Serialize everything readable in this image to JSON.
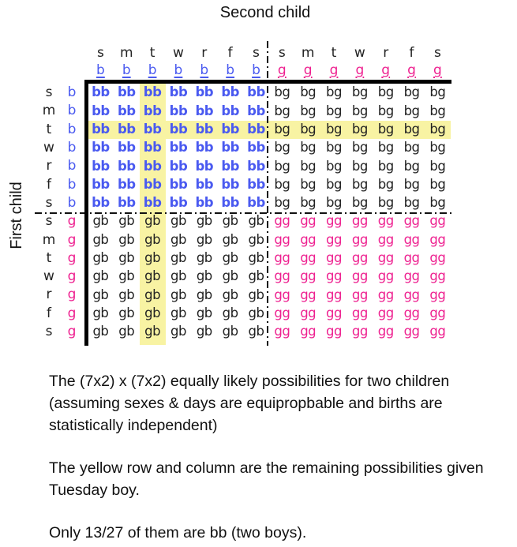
{
  "title": "Second child",
  "side_label": "First child",
  "colors": {
    "boy": "#4a5af0",
    "girl": "#ee2190",
    "highlight": "#f8f3a3",
    "line": "#000000"
  },
  "grid": {
    "col_days": [
      "s",
      "m",
      "t",
      "w",
      "r",
      "f",
      "s",
      "s",
      "m",
      "t",
      "w",
      "r",
      "f",
      "s"
    ],
    "col_sexes": [
      "b",
      "b",
      "b",
      "b",
      "b",
      "b",
      "b",
      "g",
      "g",
      "g",
      "g",
      "g",
      "g",
      "g"
    ],
    "row_days": [
      "s",
      "m",
      "t",
      "w",
      "r",
      "f",
      "s",
      "s",
      "m",
      "t",
      "w",
      "r",
      "f",
      "s"
    ],
    "row_sexes": [
      "b",
      "b",
      "b",
      "b",
      "b",
      "b",
      "b",
      "g",
      "g",
      "g",
      "g",
      "g",
      "g",
      "g"
    ],
    "cells": [
      [
        "bb",
        "bb",
        "bb",
        "bb",
        "bb",
        "bb",
        "bb",
        "bg",
        "bg",
        "bg",
        "bg",
        "bg",
        "bg",
        "bg"
      ],
      [
        "bb",
        "bb",
        "bb",
        "bb",
        "bb",
        "bb",
        "bb",
        "bg",
        "bg",
        "bg",
        "bg",
        "bg",
        "bg",
        "bg"
      ],
      [
        "bb",
        "bb",
        "bb",
        "bb",
        "bb",
        "bb",
        "bb",
        "bg",
        "bg",
        "bg",
        "bg",
        "bg",
        "bg",
        "bg"
      ],
      [
        "bb",
        "bb",
        "bb",
        "bb",
        "bb",
        "bb",
        "bb",
        "bg",
        "bg",
        "bg",
        "bg",
        "bg",
        "bg",
        "bg"
      ],
      [
        "bb",
        "bb",
        "bb",
        "bb",
        "bb",
        "bb",
        "bb",
        "bg",
        "bg",
        "bg",
        "bg",
        "bg",
        "bg",
        "bg"
      ],
      [
        "bb",
        "bb",
        "bb",
        "bb",
        "bb",
        "bb",
        "bb",
        "bg",
        "bg",
        "bg",
        "bg",
        "bg",
        "bg",
        "bg"
      ],
      [
        "bb",
        "bb",
        "bb",
        "bb",
        "bb",
        "bb",
        "bb",
        "bg",
        "bg",
        "bg",
        "bg",
        "bg",
        "bg",
        "bg"
      ],
      [
        "gb",
        "gb",
        "gb",
        "gb",
        "gb",
        "gb",
        "gb",
        "gg",
        "gg",
        "gg",
        "gg",
        "gg",
        "gg",
        "gg"
      ],
      [
        "gb",
        "gb",
        "gb",
        "gb",
        "gb",
        "gb",
        "gb",
        "gg",
        "gg",
        "gg",
        "gg",
        "gg",
        "gg",
        "gg"
      ],
      [
        "gb",
        "gb",
        "gb",
        "gb",
        "gb",
        "gb",
        "gb",
        "gg",
        "gg",
        "gg",
        "gg",
        "gg",
        "gg",
        "gg"
      ],
      [
        "gb",
        "gb",
        "gb",
        "gb",
        "gb",
        "gb",
        "gb",
        "gg",
        "gg",
        "gg",
        "gg",
        "gg",
        "gg",
        "gg"
      ],
      [
        "gb",
        "gb",
        "gb",
        "gb",
        "gb",
        "gb",
        "gb",
        "gg",
        "gg",
        "gg",
        "gg",
        "gg",
        "gg",
        "gg"
      ],
      [
        "gb",
        "gb",
        "gb",
        "gb",
        "gb",
        "gb",
        "gb",
        "gg",
        "gg",
        "gg",
        "gg",
        "gg",
        "gg",
        "gg"
      ],
      [
        "gb",
        "gb",
        "gb",
        "gb",
        "gb",
        "gb",
        "gb",
        "gg",
        "gg",
        "gg",
        "gg",
        "gg",
        "gg",
        "gg"
      ]
    ],
    "highlight": {
      "row_index": 2,
      "col_index": 2,
      "highlighted_header": "t / b"
    }
  },
  "captions": {
    "para1": "The (7x2) x (7x2) equally likely possibilities for two children\n(assuming sexes & days are equipropbable and births are\nstatistically independent)",
    "para2": "The yellow row and column are the remaining possibilities given\nTuesday boy.",
    "para3": "Only 13/27 of them are bb (two boys)."
  }
}
